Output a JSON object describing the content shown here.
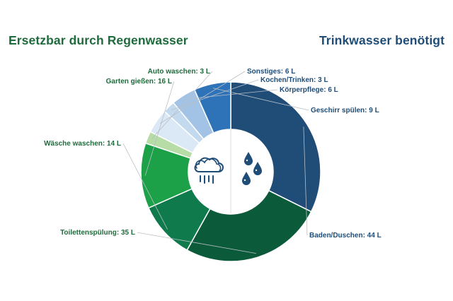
{
  "headings": {
    "left": "Ersetzbar durch Regenwasser",
    "right": "Trinkwasser benötigt"
  },
  "colors": {
    "left_heading": "#1e6b3c",
    "right_heading": "#1f4d78",
    "left_label": "#1e6b3c",
    "right_label": "#1f4d78",
    "icon": "#1f4d78"
  },
  "icons": {
    "left": "rain-cloud-icon",
    "right": "water-drops-icon"
  },
  "chart_data": {
    "type": "pie",
    "variant": "donut",
    "unit": "L",
    "title": "",
    "slices": [
      {
        "label": "Baden/Duschen",
        "value": 44,
        "color": "#1f4d78",
        "group": "Trinkwasser benötigt"
      },
      {
        "label": "Toilettenspülung",
        "value": 35,
        "color": "#0b5a3a",
        "group": "Ersetzbar durch Regenwasser"
      },
      {
        "label": "Wäsche waschen",
        "value": 14,
        "color": "#0f7a4b",
        "group": "Ersetzbar durch Regenwasser"
      },
      {
        "label": "Garten gießen",
        "value": 16,
        "color": "#1ca048",
        "group": "Ersetzbar durch Regenwasser"
      },
      {
        "label": "Auto waschen",
        "value": 3,
        "color": "#b7dca6",
        "group": "Ersetzbar durch Regenwasser"
      },
      {
        "label": "Sonstiges",
        "value": 6,
        "color": "#dbe8f5",
        "group": "Trinkwasser benötigt"
      },
      {
        "label": "Kochen/Trinken",
        "value": 3,
        "color": "#c3d9ee",
        "group": "Trinkwasser benötigt"
      },
      {
        "label": "Körperpflege",
        "value": 6,
        "color": "#a2c3e5",
        "group": "Trinkwasser benötigt"
      },
      {
        "label": "Geschirr spülen",
        "value": 9,
        "color": "#2e73b8",
        "group": "Trinkwasser benötigt"
      }
    ]
  }
}
